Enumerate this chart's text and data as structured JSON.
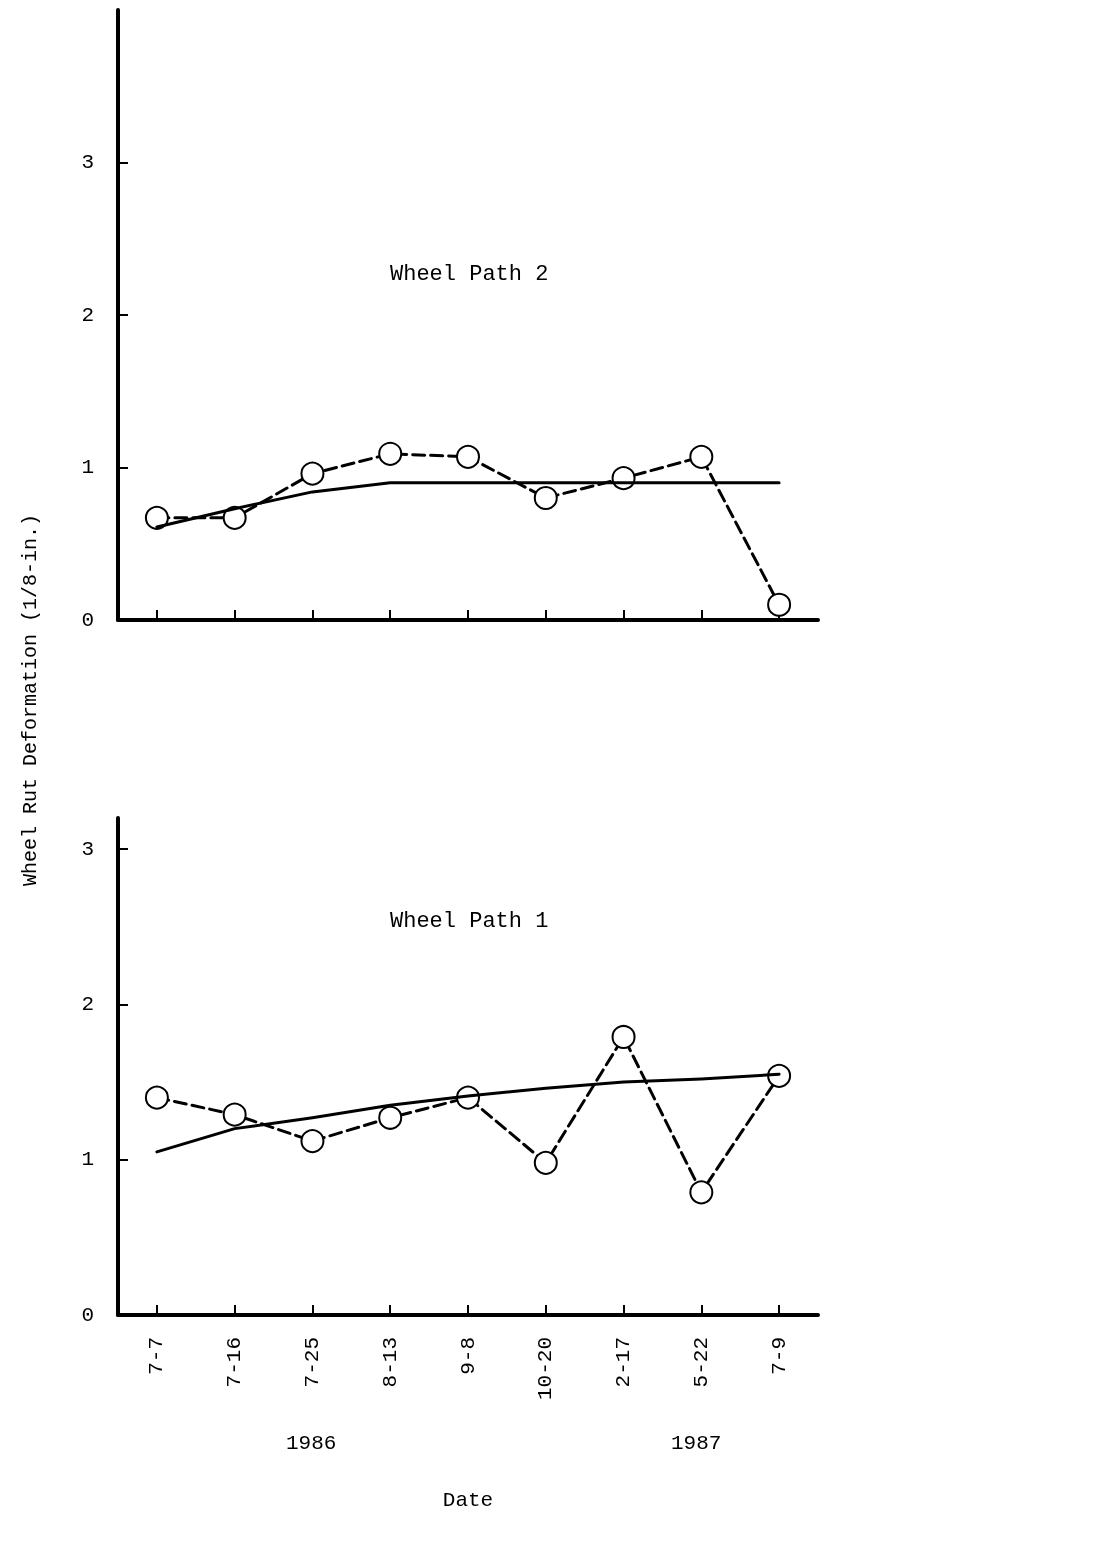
{
  "chart_data": [
    {
      "type": "line",
      "title": "Wheel Path 2",
      "ylabel": "Wheel Rut Deformation (1/8-in.)",
      "categories": [
        null,
        null,
        null,
        null,
        null,
        null,
        null,
        null,
        null
      ],
      "ylim": [
        0,
        4
      ],
      "yticks": [
        0,
        1,
        2,
        3
      ],
      "tick_labels": "y",
      "grid": false,
      "series": [
        {
          "color": "#000000",
          "marker": "circle",
          "line_style": "dashed",
          "values": [
            0.67,
            0.67,
            0.96,
            1.09,
            1.07,
            0.8,
            0.93,
            1.07,
            0.1
          ]
        },
        {
          "color": "#000000",
          "marker": "none",
          "line_style": "solid",
          "values": [
            0.61,
            0.73,
            0.84,
            0.9,
            0.9,
            0.9,
            0.9,
            0.9,
            0.9
          ]
        }
      ]
    },
    {
      "type": "line",
      "title": "Wheel Path 1",
      "xlabel": "Date",
      "categories": [
        "7-7",
        "7-16",
        "7-25",
        "8-13",
        "9-8",
        "10-20",
        "2-17",
        "5-22",
        "7-9"
      ],
      "ylim": [
        0,
        3.2
      ],
      "yticks": [
        0,
        1,
        2,
        3
      ],
      "grid": false,
      "annotations": [
        "1986",
        "1987"
      ],
      "series": [
        {
          "color": "#000000",
          "marker": "circle",
          "line_style": "dashed",
          "values": [
            1.4,
            1.29,
            1.12,
            1.27,
            1.4,
            0.98,
            1.79,
            0.79,
            1.54
          ]
        },
        {
          "color": "#000000",
          "marker": "none",
          "line_style": "solid",
          "values": [
            1.05,
            1.2,
            1.27,
            1.35,
            1.41,
            1.46,
            1.5,
            1.52,
            1.55
          ]
        }
      ]
    }
  ]
}
